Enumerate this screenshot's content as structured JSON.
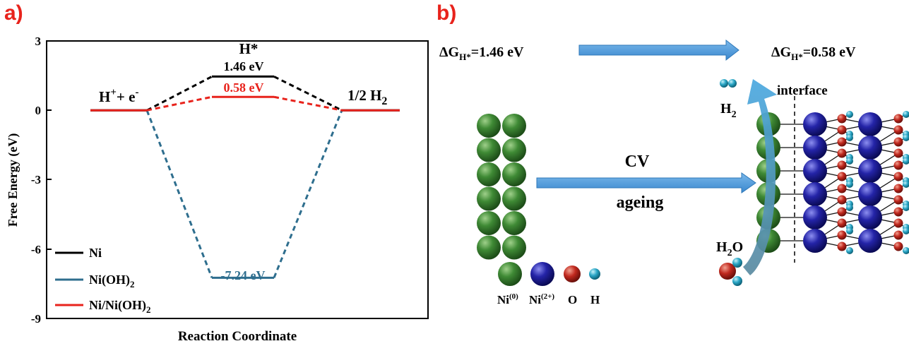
{
  "panel_a": {
    "label": "a)",
    "ylabel": "Free Energy (eV)",
    "xlabel": "Reaction Coordinate",
    "yticks": [
      "3",
      "0",
      "-3",
      "-6",
      "-9"
    ],
    "state_labels": {
      "reactant_main": "H",
      "reactant_sup1": "+",
      "reactant_mid": "+ e",
      "reactant_sup2": "-",
      "intermediate": "H*",
      "product_main": "1/2 H",
      "product_sub": "2"
    },
    "energy_labels": {
      "ni": "1.46 eV",
      "ni_nioh2": "0.58 eV",
      "nioh2": "-7.24 eV"
    },
    "legend": [
      {
        "text": "Ni",
        "sub": "",
        "color": "#000000"
      },
      {
        "text": "Ni(OH)",
        "sub": "2",
        "color": "#2e6e8e"
      },
      {
        "text": "Ni/Ni(OH)",
        "sub": "2",
        "color": "#e8231c"
      }
    ]
  },
  "chart_data": {
    "type": "line",
    "title": "",
    "xlabel": "Reaction Coordinate",
    "ylabel": "Free Energy (eV)",
    "ylim": [
      -9,
      3
    ],
    "categories": [
      "H+ + e-",
      "H*",
      "1/2 H2"
    ],
    "series": [
      {
        "name": "Ni",
        "values": [
          0,
          1.46,
          0
        ],
        "color": "#000000"
      },
      {
        "name": "Ni(OH)2",
        "values": [
          0,
          -7.24,
          0
        ],
        "color": "#2e6e8e"
      },
      {
        "name": "Ni/Ni(OH)2",
        "values": [
          0,
          0.58,
          0
        ],
        "color": "#e8231c"
      }
    ]
  },
  "panel_b": {
    "label": "b)",
    "dg_prefix": "ΔG",
    "dg_sub": "H*",
    "dg_left_value": "=1.46 eV",
    "dg_right_value": "=0.58 eV",
    "arrow_label_top": "CV",
    "arrow_label_bottom": "ageing",
    "interface_label": "interface",
    "h2_main": "H",
    "h2_sub": "2",
    "h2o_main": "H",
    "h2o_sub": "2",
    "h2o_end": "O",
    "atom_legend": [
      {
        "name": "Ni",
        "sup": "(0)",
        "color": "#2f7a2a"
      },
      {
        "name": "Ni",
        "sup": "(2+)",
        "color": "#1a1a9a"
      },
      {
        "name": "O",
        "sup": "",
        "color": "#b8241c"
      },
      {
        "name": "H",
        "sup": "",
        "color": "#22a0c0"
      }
    ]
  }
}
